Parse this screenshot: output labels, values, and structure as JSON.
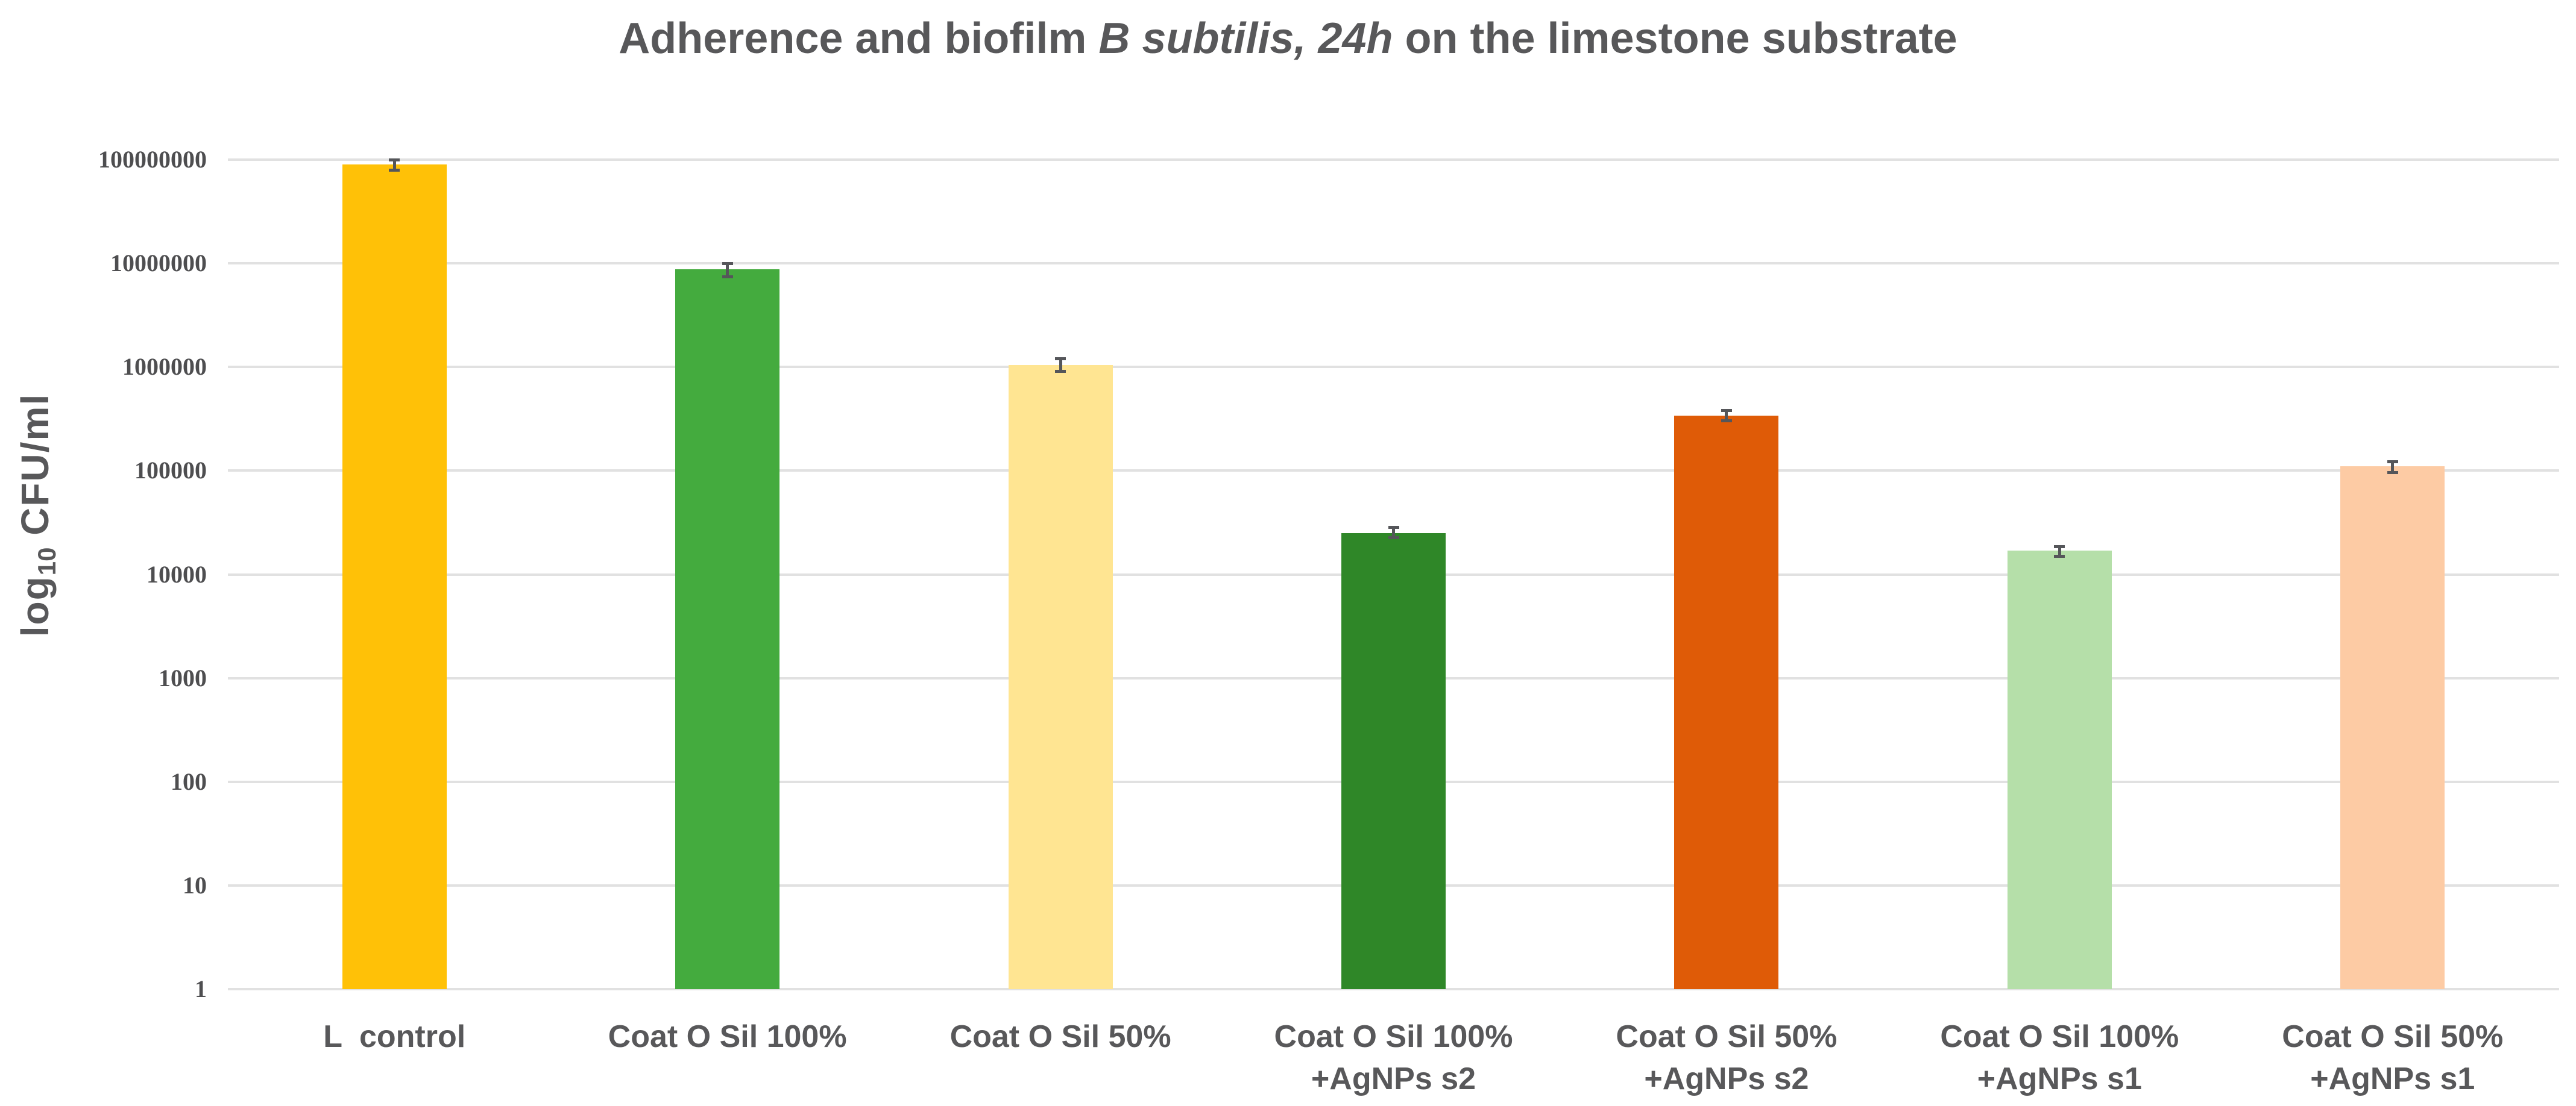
{
  "chart_data": {
    "type": "bar",
    "title": {
      "pre": "Adherence and biofilm ",
      "italic": "B subtilis, 24h",
      "post": " on the limestone substrate"
    },
    "ylabel": {
      "pre": "log",
      "sub": "10",
      "post": " CFU/ml"
    },
    "yscale": "log",
    "ylim": [
      1,
      100000000
    ],
    "ytick_labels": [
      "100000000",
      "10000000",
      "1000000",
      "100000",
      "10000",
      "1000",
      "100",
      "10",
      "1"
    ],
    "grid": true,
    "legend": false,
    "categories": [
      "L  control",
      "Coat O Sil 100%",
      "Coat O Sil 50%",
      "Coat O Sil 100%\n+AgNPs s2",
      "Coat O Sil 50%\n+AgNPs s2",
      "Coat O Sil 100%\n+AgNPs s1",
      "Coat O Sil 50%\n+AgNPs s1"
    ],
    "values": [
      90000000,
      8800000,
      1050000,
      25000,
      340000,
      17000,
      110000
    ],
    "error_hi": [
      100000000,
      9900000,
      1200000,
      28500,
      380000,
      18500,
      122000
    ],
    "error_lo": [
      79000000,
      7400000,
      910000,
      22500,
      305000,
      15000,
      96000
    ],
    "bar_colors": [
      "#FFC107",
      "#44AB3E",
      "#FFE592",
      "#2F8728",
      "#DF5B07",
      "#B5DFA9",
      "#FDCBA4"
    ],
    "grid_color": "#E1E1E1",
    "error_color": "#55565A",
    "text_color": "#58585A"
  }
}
